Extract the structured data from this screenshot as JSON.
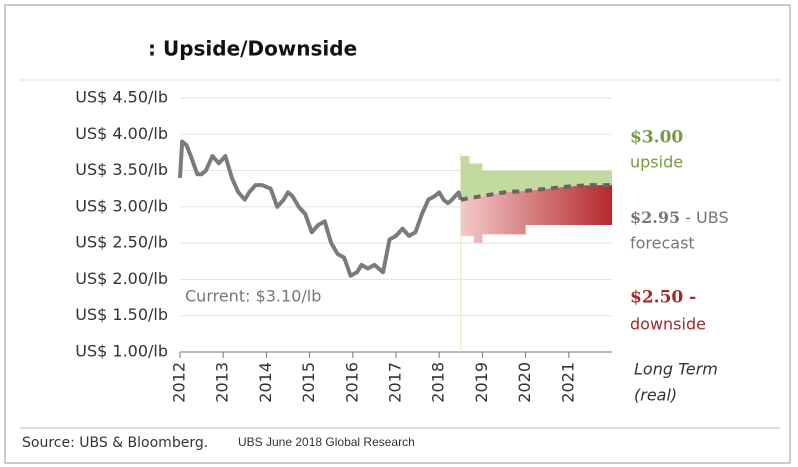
{
  "chart_data": {
    "type": "line",
    "title": ": Upside/Downside",
    "xlim": [
      2012,
      2022
    ],
    "xticks": [
      2012,
      2013,
      2014,
      2015,
      2016,
      2017,
      2018,
      2019,
      2020,
      2021
    ],
    "ylim": [
      1.0,
      4.5
    ],
    "yticks": [
      {
        "value": 1.0,
        "label": "US$ 1.00/lb"
      },
      {
        "value": 1.5,
        "label": "US$ 1.50/lb"
      },
      {
        "value": 2.0,
        "label": "US$ 2.00/lb"
      },
      {
        "value": 2.5,
        "label": "US$ 2.50/lb"
      },
      {
        "value": 3.0,
        "label": "US$ 3.00/lb"
      },
      {
        "value": 3.5,
        "label": "US$ 3.50/lb"
      },
      {
        "value": 4.0,
        "label": "US$ 4.00/lb"
      },
      {
        "value": 4.5,
        "label": "US$ 4.50/lb"
      }
    ],
    "forecast_start": 2018.5,
    "series": [
      {
        "role": "history",
        "color": "#7b7b7b",
        "x": [
          2012.0,
          2012.05,
          2012.15,
          2012.25,
          2012.4,
          2012.5,
          2012.6,
          2012.75,
          2012.9,
          2013.05,
          2013.2,
          2013.35,
          2013.5,
          2013.6,
          2013.75,
          2013.9,
          2014.1,
          2014.25,
          2014.4,
          2014.5,
          2014.6,
          2014.75,
          2014.9,
          2015.05,
          2015.2,
          2015.35,
          2015.5,
          2015.65,
          2015.8,
          2015.95,
          2016.1,
          2016.2,
          2016.35,
          2016.5,
          2016.7,
          2016.85,
          2017.0,
          2017.15,
          2017.3,
          2017.45,
          2017.6,
          2017.75,
          2017.9,
          2018.0,
          2018.1,
          2018.2,
          2018.3,
          2018.45,
          2018.5
        ],
        "values": [
          3.4,
          3.9,
          3.85,
          3.7,
          3.45,
          3.45,
          3.5,
          3.7,
          3.6,
          3.7,
          3.4,
          3.2,
          3.1,
          3.2,
          3.3,
          3.3,
          3.25,
          3.0,
          3.1,
          3.2,
          3.15,
          3.0,
          2.9,
          2.65,
          2.75,
          2.8,
          2.5,
          2.35,
          2.3,
          2.05,
          2.1,
          2.2,
          2.15,
          2.2,
          2.1,
          2.55,
          2.6,
          2.7,
          2.6,
          2.65,
          2.9,
          3.1,
          3.15,
          3.2,
          3.1,
          3.05,
          3.1,
          3.2,
          3.1
        ]
      },
      {
        "role": "forecast",
        "color": "#666666",
        "x": [
          2018.5,
          2019,
          2019.5,
          2020,
          2020.5,
          2021,
          2021.5,
          2022
        ],
        "values": [
          3.1,
          3.15,
          3.2,
          3.22,
          3.25,
          3.28,
          3.3,
          3.3
        ]
      },
      {
        "role": "upside",
        "color": "#c3da9f",
        "x": [
          2018.5,
          2018.7,
          2018.7,
          2019,
          2019,
          2022
        ],
        "values": [
          3.7,
          3.7,
          3.6,
          3.6,
          3.5,
          3.5
        ]
      },
      {
        "role": "downside",
        "color": "#b5292c",
        "x": [
          2018.5,
          2018.8,
          2018.8,
          2019,
          2019,
          2020,
          2020,
          2022
        ],
        "values": [
          2.6,
          2.6,
          2.5,
          2.5,
          2.62,
          2.62,
          2.75,
          2.75
        ]
      }
    ],
    "annotations": {
      "current": "Current:  $3.10/lb",
      "upside_value": "$3.00",
      "upside_text": "upside",
      "forecast_value": "$2.95",
      "forecast_suffix": " - UBS",
      "forecast_text": "forecast",
      "downside_value": "$2.50 -",
      "downside_text": "downside",
      "long_term_1": "Long Term",
      "long_term_2": "(real)"
    },
    "source": "Source:  UBS & Bloomberg.",
    "source_note": "UBS June 2018 Global Research"
  }
}
